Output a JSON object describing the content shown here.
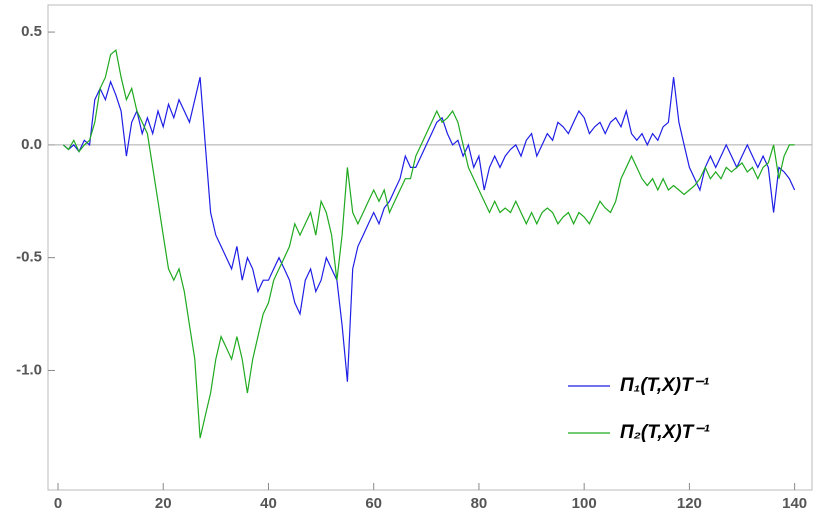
{
  "chart_data": {
    "type": "line",
    "x": [
      1,
      2,
      3,
      4,
      5,
      6,
      7,
      8,
      9,
      10,
      11,
      12,
      13,
      14,
      15,
      16,
      17,
      18,
      19,
      20,
      21,
      22,
      23,
      24,
      25,
      26,
      27,
      28,
      29,
      30,
      31,
      32,
      33,
      34,
      35,
      36,
      37,
      38,
      39,
      40,
      41,
      42,
      43,
      44,
      45,
      46,
      47,
      48,
      49,
      50,
      51,
      52,
      53,
      54,
      55,
      56,
      57,
      58,
      59,
      60,
      61,
      62,
      63,
      64,
      65,
      66,
      67,
      68,
      69,
      70,
      71,
      72,
      73,
      74,
      75,
      76,
      77,
      78,
      79,
      80,
      81,
      82,
      83,
      84,
      85,
      86,
      87,
      88,
      89,
      90,
      91,
      92,
      93,
      94,
      95,
      96,
      97,
      98,
      99,
      100,
      101,
      102,
      103,
      104,
      105,
      106,
      107,
      108,
      109,
      110,
      111,
      112,
      113,
      114,
      115,
      116,
      117,
      118,
      119,
      120,
      121,
      122,
      123,
      124,
      125,
      126,
      127,
      128,
      129,
      130,
      131,
      132,
      133,
      134,
      135,
      136,
      137,
      138,
      139,
      140
    ],
    "series": [
      {
        "name": "Π₁(T,X)T⁻¹",
        "color": "#1f1fe6",
        "values": [
          0,
          -0.02,
          0,
          -0.03,
          0.02,
          0,
          0.2,
          0.25,
          0.2,
          0.28,
          0.22,
          0.15,
          -0.05,
          0.1,
          0.15,
          0.05,
          0.12,
          0.05,
          0.15,
          0.08,
          0.18,
          0.12,
          0.2,
          0.15,
          0.1,
          0.2,
          0.3,
          0,
          -0.3,
          -0.4,
          -0.45,
          -0.5,
          -0.55,
          -0.45,
          -0.6,
          -0.5,
          -0.55,
          -0.65,
          -0.6,
          -0.6,
          -0.55,
          -0.5,
          -0.55,
          -0.6,
          -0.7,
          -0.75,
          -0.6,
          -0.55,
          -0.65,
          -0.6,
          -0.5,
          -0.55,
          -0.6,
          -0.8,
          -1.05,
          -0.55,
          -0.45,
          -0.4,
          -0.35,
          -0.3,
          -0.35,
          -0.28,
          -0.25,
          -0.2,
          -0.15,
          -0.05,
          -0.1,
          -0.1,
          -0.05,
          0,
          0.05,
          0.1,
          0.12,
          0.05,
          0,
          0.02,
          -0.05,
          0,
          -0.1,
          -0.05,
          -0.2,
          -0.1,
          -0.05,
          -0.1,
          -0.05,
          -0.02,
          0,
          -0.05,
          0.02,
          0.05,
          -0.05,
          0,
          0.05,
          0.02,
          0.1,
          0.08,
          0.05,
          0.1,
          0.15,
          0.12,
          0.05,
          0.08,
          0.1,
          0.05,
          0.1,
          0.12,
          0.08,
          0.15,
          0.05,
          0.02,
          0.05,
          0,
          0.05,
          0.02,
          0.08,
          0.1,
          0.3,
          0.1,
          0,
          -0.1,
          -0.15,
          -0.2,
          -0.1,
          -0.05,
          -0.1,
          -0.05,
          0,
          -0.05,
          -0.1,
          -0.05,
          0,
          -0.05,
          -0.1,
          -0.05,
          -0.1,
          -0.3,
          -0.1,
          -0.12,
          -0.15,
          -0.2
        ]
      },
      {
        "name": "Π₂(T,X)T⁻¹",
        "color": "#1faa1f",
        "values": [
          0,
          -0.02,
          0.02,
          -0.03,
          0,
          0.02,
          0.1,
          0.25,
          0.3,
          0.4,
          0.42,
          0.3,
          0.2,
          0.25,
          0.15,
          0.1,
          0.05,
          -0.1,
          -0.25,
          -0.4,
          -0.55,
          -0.6,
          -0.55,
          -0.65,
          -0.8,
          -0.95,
          -1.3,
          -1.2,
          -1.1,
          -0.95,
          -0.85,
          -0.9,
          -0.95,
          -0.85,
          -0.95,
          -1.1,
          -0.95,
          -0.85,
          -0.75,
          -0.7,
          -0.6,
          -0.55,
          -0.5,
          -0.45,
          -0.35,
          -0.4,
          -0.35,
          -0.3,
          -0.4,
          -0.25,
          -0.3,
          -0.4,
          -0.6,
          -0.4,
          -0.1,
          -0.3,
          -0.35,
          -0.3,
          -0.25,
          -0.2,
          -0.25,
          -0.2,
          -0.3,
          -0.25,
          -0.2,
          -0.15,
          -0.15,
          -0.05,
          0,
          0.05,
          0.1,
          0.15,
          0.1,
          0.12,
          0.15,
          0.1,
          0,
          -0.1,
          -0.15,
          -0.2,
          -0.25,
          -0.3,
          -0.25,
          -0.3,
          -0.28,
          -0.3,
          -0.25,
          -0.3,
          -0.35,
          -0.3,
          -0.35,
          -0.3,
          -0.28,
          -0.3,
          -0.35,
          -0.32,
          -0.3,
          -0.35,
          -0.3,
          -0.32,
          -0.35,
          -0.3,
          -0.25,
          -0.28,
          -0.3,
          -0.25,
          -0.15,
          -0.1,
          -0.05,
          -0.1,
          -0.15,
          -0.18,
          -0.15,
          -0.2,
          -0.15,
          -0.2,
          -0.18,
          -0.2,
          -0.22,
          -0.2,
          -0.18,
          -0.15,
          -0.1,
          -0.15,
          -0.12,
          -0.15,
          -0.1,
          -0.12,
          -0.1,
          -0.08,
          -0.12,
          -0.1,
          -0.15,
          -0.1,
          -0.08,
          0,
          -0.15,
          -0.05,
          0,
          0
        ]
      }
    ],
    "xlim": [
      -1.9,
      143.3
    ],
    "ylim": [
      -1.53,
      0.62
    ],
    "xticks": [
      0,
      20,
      40,
      60,
      80,
      100,
      120,
      140
    ],
    "yticks": [
      0.5,
      {
        "value": 0,
        "label": "0.0"
      },
      -0.5,
      {
        "value": -1,
        "label": "-1.0"
      }
    ],
    "legend": "lower right"
  }
}
